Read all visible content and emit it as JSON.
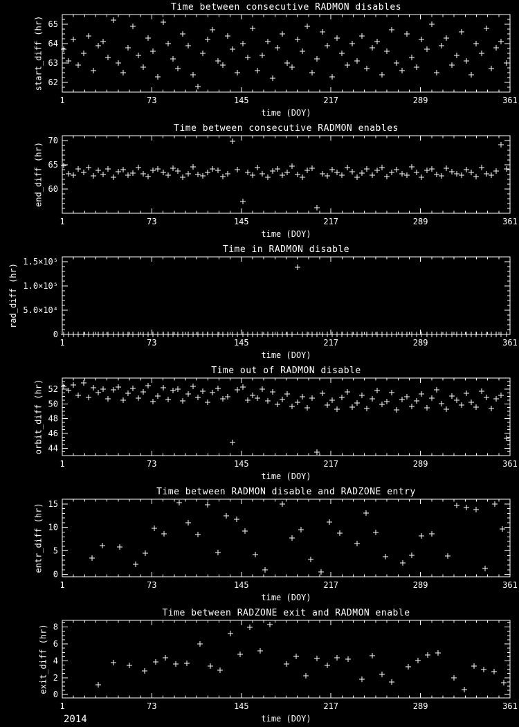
{
  "page": {
    "background": "#000000",
    "foreground": "#ffffff",
    "footer_year": "2014"
  },
  "chart_data": [
    {
      "type": "scatter",
      "marker": "+",
      "title": "Time between consecutive RADMON disables",
      "xlabel": "time (DOY)",
      "ylabel": "start_diff (hr)",
      "xlim": [
        1,
        361
      ],
      "xticks": [
        1,
        73,
        145,
        217,
        289,
        361
      ],
      "xminor": 8,
      "ylim": [
        61.5,
        65.5
      ],
      "yticks": [
        62,
        63,
        64,
        65
      ],
      "yminor": 4,
      "x": [
        2,
        6,
        10,
        14,
        18,
        22,
        26,
        30,
        34,
        38,
        42,
        46,
        50,
        54,
        58,
        62,
        66,
        70,
        74,
        78,
        82,
        86,
        90,
        94,
        98,
        102,
        106,
        110,
        114,
        118,
        122,
        126,
        130,
        134,
        138,
        142,
        146,
        150,
        154,
        158,
        162,
        166,
        170,
        174,
        178,
        182,
        186,
        190,
        194,
        198,
        202,
        206,
        210,
        214,
        218,
        222,
        226,
        230,
        234,
        238,
        242,
        246,
        250,
        254,
        258,
        262,
        266,
        270,
        274,
        278,
        282,
        286,
        290,
        294,
        298,
        302,
        306,
        310,
        314,
        318,
        322,
        326,
        330,
        334,
        338,
        342,
        346,
        350,
        354,
        358
      ],
      "y": [
        63.7,
        63.1,
        64.2,
        62.9,
        63.5,
        64.4,
        62.6,
        63.9,
        64.1,
        63.3,
        65.2,
        63.0,
        62.5,
        63.8,
        64.9,
        63.4,
        62.8,
        64.3,
        63.6,
        62.3,
        65.1,
        64.0,
        63.2,
        62.7,
        64.5,
        63.9,
        62.4,
        61.8,
        63.5,
        64.2,
        64.7,
        63.1,
        62.9,
        64.4,
        63.7,
        62.5,
        64.0,
        63.3,
        64.8,
        62.6,
        63.4,
        64.1,
        62.2,
        63.8,
        64.5,
        63.0,
        62.8,
        64.2,
        63.6,
        64.9,
        62.5,
        63.2,
        64.6,
        63.9,
        62.3,
        64.3,
        63.5,
        62.9,
        64.0,
        63.1,
        64.4,
        62.7,
        63.8,
        64.1,
        62.4,
        63.6,
        64.7,
        63.0,
        62.6,
        64.5,
        63.3,
        62.8,
        64.2,
        63.7,
        65.0,
        62.5,
        63.9,
        64.3,
        62.9,
        63.4,
        64.6,
        63.1,
        62.4,
        64.0,
        63.5,
        64.8,
        62.7,
        63.8,
        64.1,
        63.0
      ]
    },
    {
      "type": "scatter",
      "marker": "+",
      "title": "Time between consecutive RADMON enables",
      "xlabel": "time (DOY)",
      "ylabel": "end_diff (hr)",
      "xlim": [
        1,
        361
      ],
      "xticks": [
        1,
        73,
        145,
        217,
        289,
        361
      ],
      "xminor": 8,
      "ylim": [
        55,
        71
      ],
      "yticks": [
        60,
        65,
        70
      ],
      "yminor": 5,
      "x": [
        2,
        6,
        10,
        14,
        18,
        22,
        26,
        30,
        34,
        38,
        42,
        46,
        50,
        54,
        58,
        62,
        66,
        70,
        74,
        78,
        82,
        86,
        90,
        94,
        98,
        102,
        106,
        110,
        114,
        118,
        122,
        126,
        130,
        134,
        138,
        142,
        146,
        150,
        154,
        158,
        162,
        166,
        170,
        174,
        178,
        182,
        186,
        190,
        194,
        198,
        202,
        206,
        210,
        214,
        218,
        222,
        226,
        230,
        234,
        238,
        242,
        246,
        250,
        254,
        258,
        262,
        266,
        270,
        274,
        278,
        282,
        286,
        290,
        294,
        298,
        302,
        306,
        310,
        314,
        318,
        322,
        326,
        330,
        334,
        338,
        342,
        346,
        350,
        354,
        358
      ],
      "y": [
        64.8,
        63.2,
        62.9,
        64.1,
        63.5,
        64.4,
        62.7,
        63.8,
        63.0,
        64.2,
        62.5,
        63.6,
        64.0,
        62.8,
        63.3,
        64.5,
        63.1,
        62.6,
        63.9,
        64.1,
        63.4,
        62.9,
        64.3,
        63.7,
        62.4,
        63.2,
        64.6,
        63.0,
        62.7,
        63.5,
        64.2,
        63.8,
        62.6,
        63.1,
        69.8,
        64.0,
        57.5,
        63.4,
        62.9,
        64.4,
        63.2,
        62.5,
        63.7,
        64.1,
        62.8,
        63.5,
        64.7,
        63.0,
        62.4,
        63.8,
        64.3,
        56.2,
        63.1,
        62.7,
        64.0,
        63.4,
        62.9,
        64.5,
        63.6,
        62.5,
        63.3,
        64.1,
        62.8,
        63.9,
        64.4,
        62.6,
        63.5,
        64.0,
        63.2,
        62.9,
        64.6,
        63.4,
        62.5,
        63.8,
        64.2,
        63.0,
        62.7,
        64.3,
        63.6,
        63.1,
        62.8,
        64.0,
        63.5,
        62.6,
        64.4,
        63.2,
        62.9,
        63.7,
        69.2,
        64.1
      ]
    },
    {
      "type": "scatter",
      "marker": "+",
      "title": "Time in RADMON disable",
      "xlabel": "time (DOY)",
      "ylabel": "rad_diff (hr)",
      "xlim": [
        1,
        361
      ],
      "xticks": [
        1,
        73,
        145,
        217,
        289,
        361
      ],
      "xminor": 8,
      "ylim": [
        0,
        160000
      ],
      "yticks": [
        0,
        50000,
        100000,
        150000
      ],
      "ytick_labels": [
        "0",
        "5.0×10⁴",
        "1.0×10⁵",
        "1.5×10⁵"
      ],
      "yminor": 5,
      "x": [
        2,
        6,
        10,
        14,
        18,
        22,
        26,
        30,
        34,
        38,
        42,
        46,
        50,
        54,
        58,
        62,
        66,
        70,
        74,
        78,
        82,
        86,
        90,
        94,
        98,
        102,
        106,
        110,
        114,
        118,
        122,
        126,
        130,
        134,
        138,
        142,
        146,
        150,
        154,
        158,
        162,
        166,
        170,
        174,
        178,
        182,
        186,
        190,
        194,
        198,
        202,
        206,
        210,
        214,
        218,
        222,
        226,
        230,
        234,
        238,
        242,
        246,
        250,
        254,
        258,
        262,
        266,
        270,
        274,
        278,
        282,
        286,
        290,
        294,
        298,
        302,
        306,
        310,
        314,
        318,
        322,
        326,
        330,
        334,
        338,
        342,
        346,
        350,
        354,
        358
      ],
      "y": [
        320,
        450,
        280,
        510,
        390,
        340,
        470,
        300,
        420,
        360,
        290,
        480,
        350,
        310,
        440,
        380,
        330,
        460,
        290,
        410,
        370,
        320,
        490,
        300,
        430,
        350,
        460,
        280,
        400,
        340,
        310,
        470,
        360,
        290,
        420,
        380,
        450,
        330,
        300,
        440,
        270,
        390,
        340,
        480,
        310,
        360,
        420,
        138000,
        350,
        300,
        460,
        320,
        410,
        280,
        370,
        430,
        340,
        300,
        450,
        390,
        330,
        470,
        290,
        360,
        410,
        310,
        440,
        350,
        380,
        300,
        420,
        360,
        290,
        460,
        330,
        400,
        310,
        450,
        340,
        370,
        300,
        430,
        350,
        410,
        320,
        380,
        290,
        440,
        360,
        330
      ]
    },
    {
      "type": "scatter",
      "marker": "+",
      "title": "Time out of RADMON disable",
      "xlabel": "time (DOY)",
      "ylabel": "orbit_diff (hr)",
      "xlim": [
        1,
        361
      ],
      "xticks": [
        1,
        73,
        145,
        217,
        289,
        361
      ],
      "xminor": 8,
      "ylim": [
        43,
        53.5
      ],
      "yticks": [
        44,
        46,
        48,
        50,
        52
      ],
      "yminor": 4,
      "x": [
        2,
        6,
        10,
        14,
        18,
        22,
        26,
        30,
        34,
        38,
        42,
        46,
        50,
        54,
        58,
        62,
        66,
        70,
        74,
        78,
        82,
        86,
        90,
        94,
        98,
        102,
        106,
        110,
        114,
        118,
        122,
        126,
        130,
        134,
        138,
        142,
        146,
        150,
        154,
        158,
        162,
        166,
        170,
        174,
        178,
        182,
        186,
        190,
        194,
        198,
        202,
        206,
        210,
        214,
        218,
        222,
        226,
        230,
        234,
        238,
        242,
        246,
        250,
        254,
        258,
        262,
        266,
        270,
        274,
        278,
        282,
        286,
        290,
        294,
        298,
        302,
        306,
        310,
        314,
        318,
        322,
        326,
        330,
        334,
        338,
        342,
        346,
        350,
        354,
        358
      ],
      "y": [
        52.4,
        51.8,
        52.6,
        51.2,
        52.8,
        50.9,
        52.2,
        51.5,
        52.0,
        50.7,
        51.9,
        52.3,
        50.5,
        51.4,
        52.1,
        50.8,
        51.6,
        52.5,
        50.3,
        51.1,
        52.2,
        50.6,
        51.8,
        52.0,
        50.4,
        51.3,
        52.4,
        50.9,
        51.7,
        50.2,
        51.5,
        52.1,
        50.7,
        51.0,
        44.8,
        51.9,
        52.3,
        50.5,
        51.2,
        50.8,
        52.0,
        50.4,
        51.6,
        49.9,
        50.6,
        51.3,
        49.7,
        50.2,
        51.0,
        49.5,
        50.8,
        43.5,
        51.4,
        49.8,
        50.5,
        49.3,
        50.9,
        51.6,
        49.6,
        50.1,
        51.2,
        49.4,
        50.7,
        51.8,
        49.9,
        50.3,
        51.5,
        49.2,
        50.6,
        51.0,
        49.7,
        50.4,
        51.3,
        49.5,
        50.8,
        51.9,
        50.0,
        49.3,
        51.1,
        50.5,
        49.8,
        51.4,
        50.2,
        49.6,
        51.7,
        50.9,
        49.4,
        50.7,
        51.2,
        45.3
      ]
    },
    {
      "type": "scatter",
      "marker": "+",
      "title": "Time between RADMON disable and RADZONE entry",
      "xlabel": "time (DOY)",
      "ylabel": "entr_diff (hr)",
      "xlim": [
        1,
        361
      ],
      "xticks": [
        1,
        73,
        145,
        217,
        289,
        361
      ],
      "xminor": 8,
      "ylim": [
        -0.5,
        16
      ],
      "yticks": [
        0,
        5,
        10,
        15
      ],
      "yminor": 5,
      "x": [
        25,
        33,
        47,
        60,
        68,
        75,
        83,
        95,
        102,
        110,
        118,
        126,
        133,
        141,
        148,
        156,
        164,
        178,
        186,
        193,
        201,
        209,
        216,
        224,
        238,
        245,
        253,
        261,
        275,
        282,
        290,
        298,
        311,
        318,
        326,
        334,
        341,
        349,
        355
      ],
      "y": [
        3.5,
        6.2,
        5.8,
        2.1,
        4.5,
        9.8,
        8.7,
        15.2,
        11.0,
        8.5,
        14.8,
        4.7,
        12.5,
        11.8,
        9.2,
        4.2,
        1.0,
        14.9,
        7.8,
        9.5,
        3.2,
        0.5,
        11.2,
        8.8,
        6.5,
        13.0,
        9.0,
        3.8,
        2.5,
        4.0,
        8.2,
        8.6,
        3.9,
        14.7,
        14.2,
        13.8,
        1.2,
        15.0,
        9.7
      ]
    },
    {
      "type": "scatter",
      "marker": "+",
      "title": "Time between RADZONE exit and RADMON enable",
      "xlabel": "time (DOY)",
      "ylabel": "exit_diff (hr)",
      "xlim": [
        1,
        361
      ],
      "xticks": [
        1,
        73,
        145,
        217,
        289,
        361
      ],
      "xminor": 8,
      "ylim": [
        -0.4,
        8.8
      ],
      "yticks": [
        0,
        2,
        4,
        6,
        8
      ],
      "yminor": 4,
      "x": [
        30,
        42,
        55,
        67,
        76,
        84,
        92,
        101,
        112,
        120,
        128,
        136,
        144,
        152,
        160,
        168,
        181,
        189,
        197,
        206,
        214,
        222,
        231,
        242,
        250,
        258,
        266,
        279,
        287,
        295,
        303,
        316,
        324,
        332,
        340,
        348,
        356
      ],
      "y": [
        1.2,
        3.8,
        3.5,
        2.8,
        3.9,
        4.4,
        3.6,
        3.7,
        6.0,
        3.4,
        2.9,
        7.2,
        4.8,
        8.0,
        5.2,
        8.3,
        3.6,
        4.5,
        2.2,
        4.3,
        3.5,
        4.4,
        4.2,
        1.8,
        4.6,
        2.4,
        1.5,
        3.3,
        4.0,
        4.7,
        4.9,
        2.0,
        0.6,
        3.4,
        3.0,
        2.7,
        1.4
      ]
    }
  ]
}
